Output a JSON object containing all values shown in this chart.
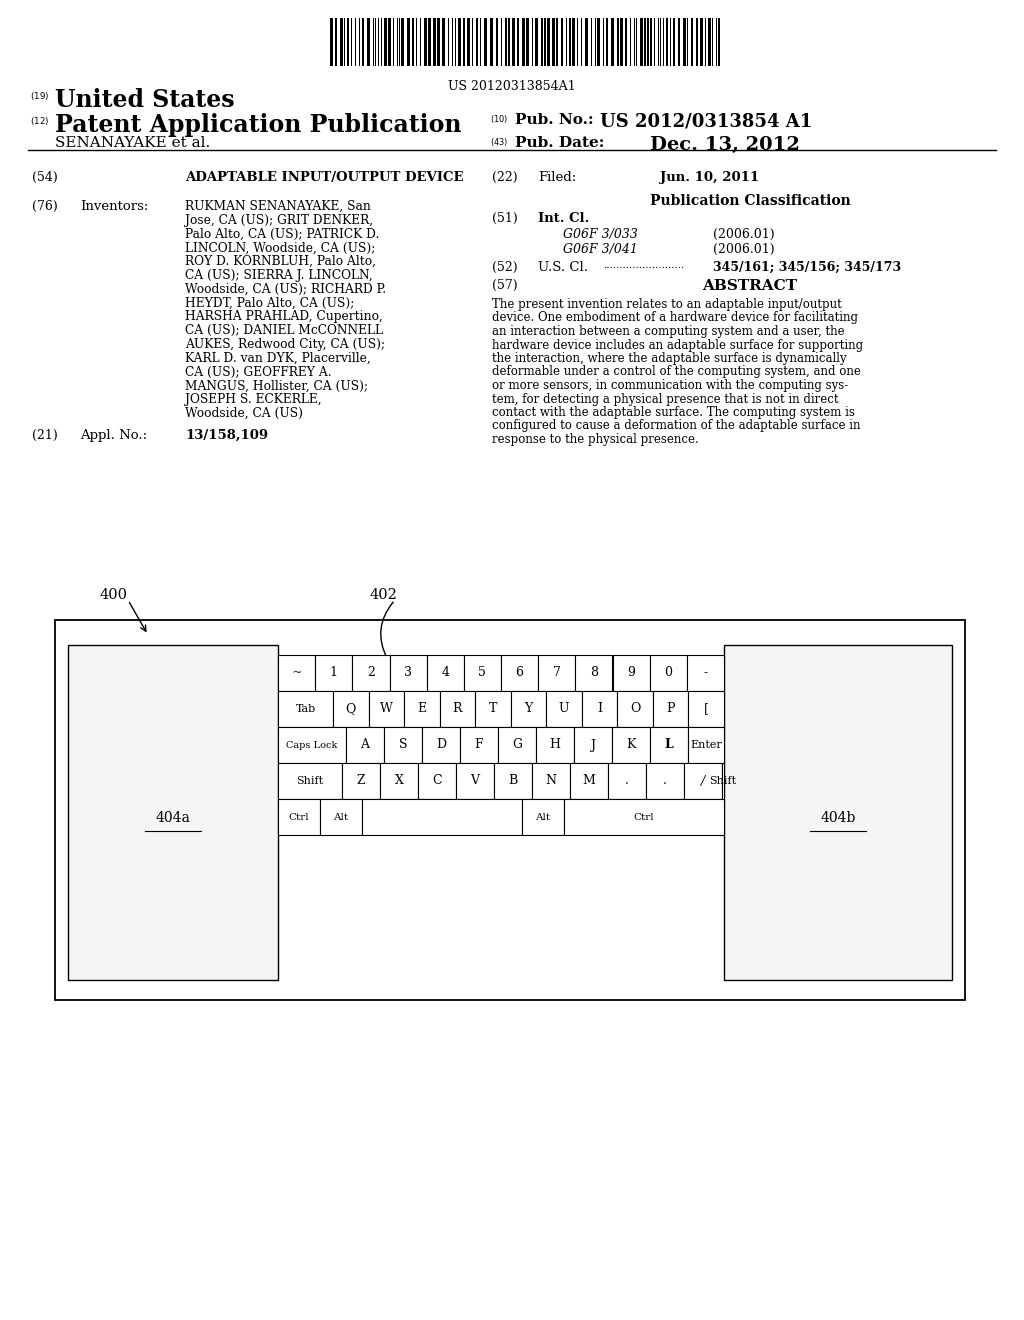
{
  "bg_color": "#ffffff",
  "barcode_text": "US 20120313854A1",
  "title_19": "United States",
  "title_12": "Patent Application Publication",
  "pub_no_label": "Pub. No.:",
  "pub_no_val": "US 2012/0313854 A1",
  "inventor_label": "SENANAYAKE et al.",
  "pub_date_label": "Pub. Date:",
  "pub_date_val": "Dec. 13, 2012",
  "section_54_text": "ADAPTABLE INPUT/OUTPUT DEVICE",
  "section_76_head": "Inventors:",
  "section_21_head": "Appl. No.:",
  "section_21_val": "13/158,109",
  "section_22_head": "Filed:",
  "section_22_val": "Jun. 10, 2011",
  "pub_class_title": "Publication Classification",
  "int_cl_1": "G06F 3/033",
  "int_cl_1_year": "(2006.01)",
  "int_cl_2": "G06F 3/041",
  "int_cl_2_year": "(2006.01)",
  "section_52_val": "345/161; 345/156; 345/173",
  "section_57_head": "ABSTRACT",
  "abstract_text": "The present invention relates to an adaptable input/output\ndevice. One embodiment of a hardware device for facilitating\nan interaction between a computing system and a user, the\nhardware device includes an adaptable surface for supporting\nthe interaction, where the adaptable surface is dynamically\ndeformable under a control of the computing system, and one\nor more sensors, in communication with the computing sys-\ntem, for detecting a physical presence that is not in direct\ncontact with the adaptable surface. The computing system is\nconfigured to cause a deformation of the adaptable surface in\nresponse to the physical presence.",
  "fig_label_400": "400",
  "fig_label_402": "402",
  "fig_label_404a": "404a",
  "fig_label_404b": "404b",
  "kbd_row1": [
    "~",
    "1",
    "2",
    "3",
    "4",
    "5",
    "6",
    "7",
    "8",
    "9",
    "0",
    "-"
  ],
  "kbd_row2": [
    "Q",
    "W",
    "E",
    "R",
    "T",
    "Y",
    "U",
    "I",
    "O",
    "P",
    "["
  ],
  "kbd_row3": [
    "A",
    "S",
    "D",
    "F",
    "G",
    "H",
    "J",
    "K",
    "L"
  ],
  "kbd_row4": [
    "Z",
    "X",
    "C",
    "V",
    "B",
    "N",
    "M",
    ".",
    ".",
    "/"
  ]
}
